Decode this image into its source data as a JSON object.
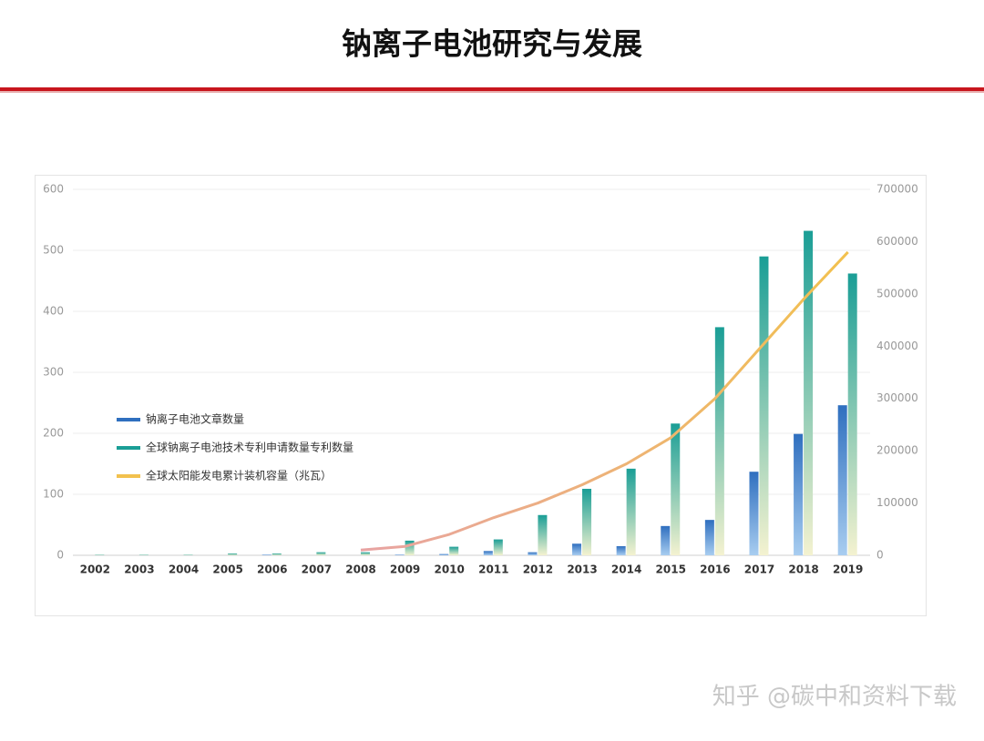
{
  "title": "钠离子电池研究与发展",
  "watermark": "知乎 @碳中和资料下载",
  "chart_data": {
    "type": "bar-line",
    "categories": [
      "2002",
      "2003",
      "2004",
      "2005",
      "2006",
      "2007",
      "2008",
      "2009",
      "2010",
      "2011",
      "2012",
      "2013",
      "2014",
      "2015",
      "2016",
      "2017",
      "2018",
      "2019"
    ],
    "series": [
      {
        "name": "钠离子电池文章数量",
        "color": "#2f6fbf",
        "type": "bar",
        "values": [
          0,
          0,
          0,
          0,
          1,
          0,
          0,
          1,
          2,
          7,
          5,
          19,
          15,
          48,
          58,
          137,
          199,
          246
        ]
      },
      {
        "name": "全球钠离子电池技术专利申请数量专利数量",
        "color": "#1a9e96",
        "type": "bar",
        "values": [
          1,
          1,
          1,
          3,
          3,
          5,
          5,
          24,
          14,
          26,
          66,
          109,
          142,
          216,
          374,
          490,
          532,
          462
        ]
      },
      {
        "name": "全球太阳能发电累计装机容量（兆瓦）",
        "color": "#f2c14e",
        "type": "line",
        "axis": "y2",
        "values": [
          null,
          null,
          null,
          null,
          null,
          null,
          10000,
          17000,
          40000,
          72000,
          100000,
          135000,
          175000,
          225000,
          300000,
          395000,
          490000,
          580000
        ]
      }
    ],
    "ylim": [
      0,
      600
    ],
    "yticks": [
      0,
      100,
      200,
      300,
      400,
      500,
      600
    ],
    "y2lim": [
      0,
      700000
    ],
    "y2ticks": [
      0,
      100000,
      200000,
      300000,
      400000,
      500000,
      600000,
      700000
    ],
    "grid": true
  }
}
